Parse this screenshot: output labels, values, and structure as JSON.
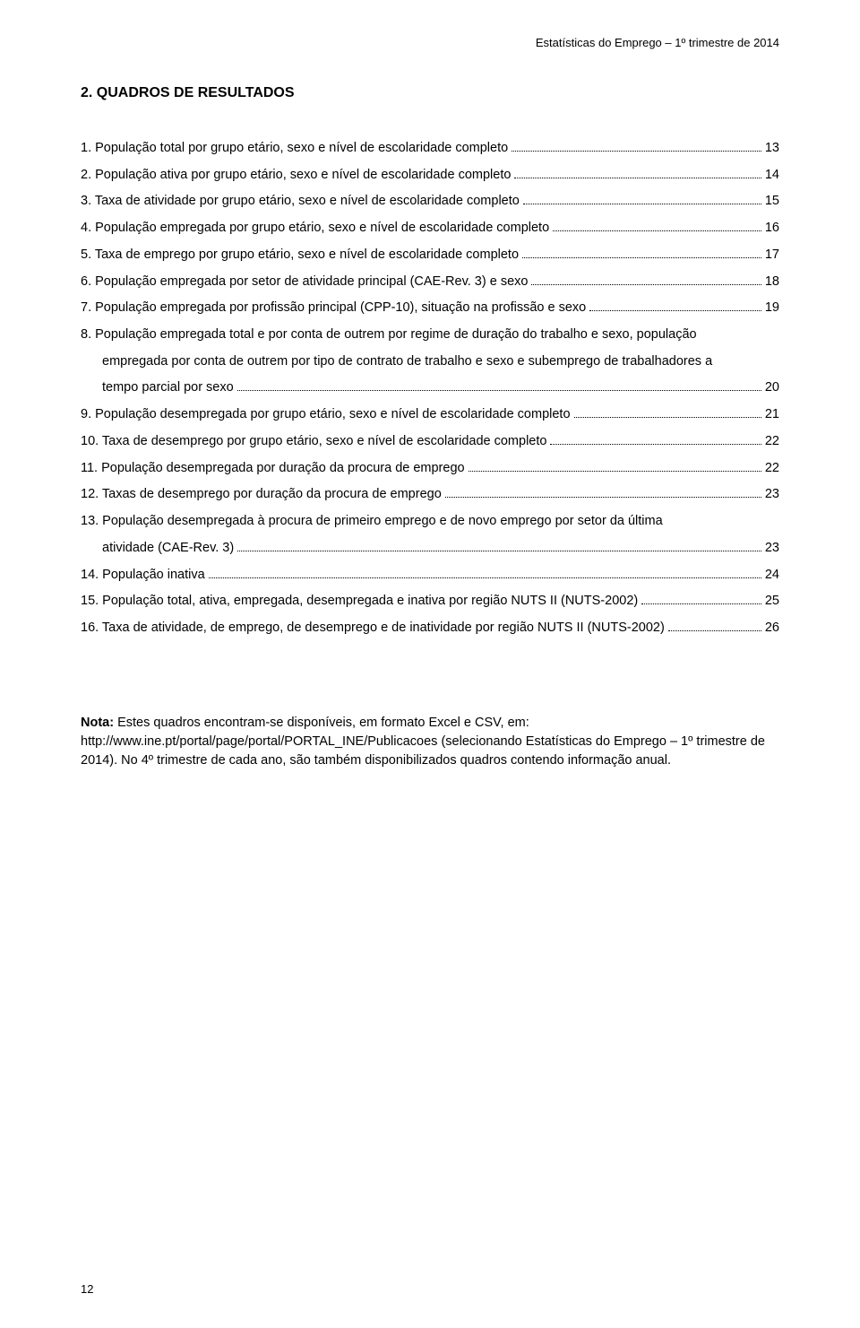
{
  "header": {
    "text": "Estatísticas do Emprego – 1º trimestre de 2014"
  },
  "section": {
    "title": "2.   QUADROS DE RESULTADOS"
  },
  "toc": [
    {
      "lines": [
        "1. População total por grupo etário, sexo e nível de escolaridade completo"
      ],
      "page": "13"
    },
    {
      "lines": [
        "2. População ativa por grupo etário, sexo e nível de escolaridade completo"
      ],
      "page": "14"
    },
    {
      "lines": [
        "3. Taxa de atividade por grupo etário, sexo e nível de escolaridade completo"
      ],
      "page": "15"
    },
    {
      "lines": [
        "4. População empregada por grupo etário, sexo e nível de escolaridade completo"
      ],
      "page": "16"
    },
    {
      "lines": [
        "5. Taxa de emprego por grupo etário, sexo e nível de escolaridade completo"
      ],
      "page": "17"
    },
    {
      "lines": [
        "6. População empregada por setor de atividade principal (CAE-Rev. 3) e sexo"
      ],
      "page": "18"
    },
    {
      "lines": [
        "7. População empregada por profissão principal (CPP-10), situação na profissão e sexo"
      ],
      "page": "19"
    },
    {
      "lines": [
        "8. População empregada total e por conta de outrem por regime de duração do trabalho e sexo, população",
        "empregada por conta de outrem por tipo de contrato de trabalho e sexo e subemprego de trabalhadores a",
        "tempo parcial por sexo"
      ],
      "page": "20"
    },
    {
      "lines": [
        "9. População desempregada por grupo etário, sexo e nível de escolaridade completo"
      ],
      "page": "21"
    },
    {
      "lines": [
        "10. Taxa de desemprego por grupo etário, sexo e nível de escolaridade completo"
      ],
      "page": "22"
    },
    {
      "lines": [
        "11. População desempregada por duração da procura de emprego"
      ],
      "page": "22"
    },
    {
      "lines": [
        "12. Taxas de desemprego por duração da procura de emprego"
      ],
      "page": "23"
    },
    {
      "lines": [
        "13. População desempregada à procura de primeiro emprego e de novo emprego por setor da última",
        "atividade (CAE-Rev. 3)"
      ],
      "page": "23"
    },
    {
      "lines": [
        "14. População inativa"
      ],
      "page": "24"
    },
    {
      "lines": [
        "15. População total, ativa, empregada, desempregada e inativa por região NUTS II (NUTS-2002)"
      ],
      "page": "25"
    },
    {
      "lines": [
        "16. Taxa de atividade, de emprego, de desemprego e de inatividade por região NUTS II (NUTS-2002)"
      ],
      "page": "26"
    }
  ],
  "note": {
    "label": "Nota:",
    "line1": " Estes quadros encontram-se disponíveis, em formato Excel e CSV, em:",
    "line2": "http://www.ine.pt/portal/page/portal/PORTAL_INE/Publicacoes (selecionando Estatísticas do Emprego – 1º trimestre de 2014). No 4º trimestre de cada ano, são também disponibilizados quadros contendo informação anual."
  },
  "footer": {
    "page_number": "12"
  }
}
